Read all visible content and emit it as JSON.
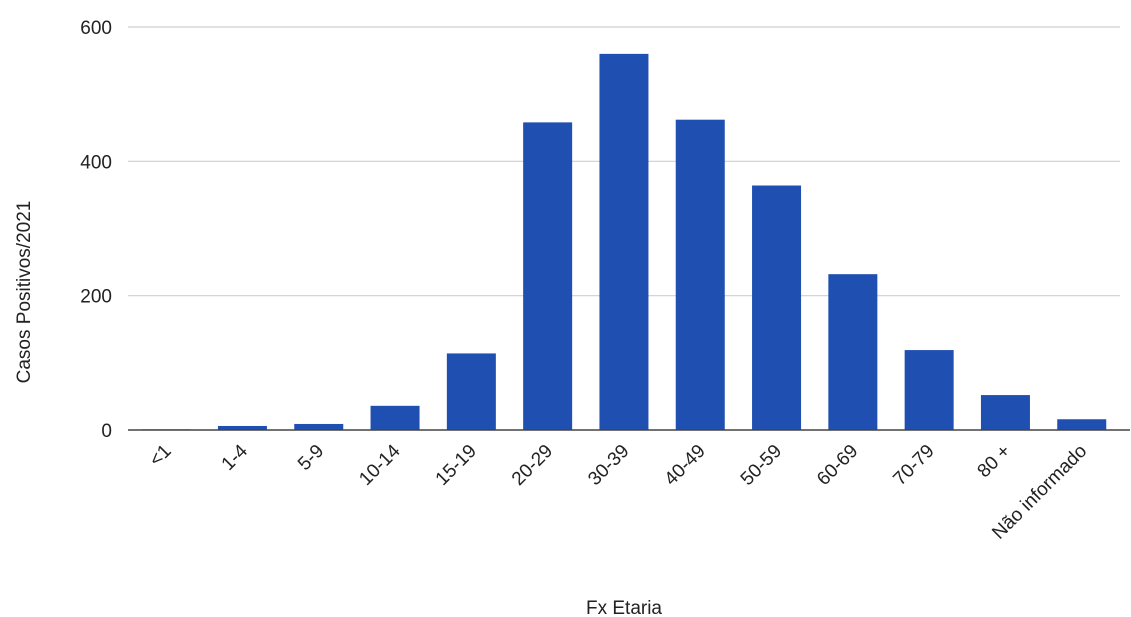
{
  "chart_data": {
    "type": "bar",
    "title": "",
    "xlabel": "Fx Etaria",
    "ylabel": "Casos Positivos/2021",
    "categories": [
      "<1",
      "1-4",
      "5-9",
      "10-14",
      "15-19",
      "20-29",
      "30-39",
      "40-49",
      "50-59",
      "60-69",
      "70-79",
      "80 +",
      "Não informado"
    ],
    "values": [
      1,
      6,
      9,
      36,
      114,
      458,
      560,
      462,
      364,
      232,
      119,
      52,
      16
    ],
    "ylim": [
      0,
      600
    ],
    "yticks": [
      "0",
      "200",
      "400",
      "600"
    ],
    "ytick_values": [
      0,
      200,
      400,
      600
    ],
    "grid": true,
    "legend": "none",
    "bar_color": "#1f4fb0"
  }
}
